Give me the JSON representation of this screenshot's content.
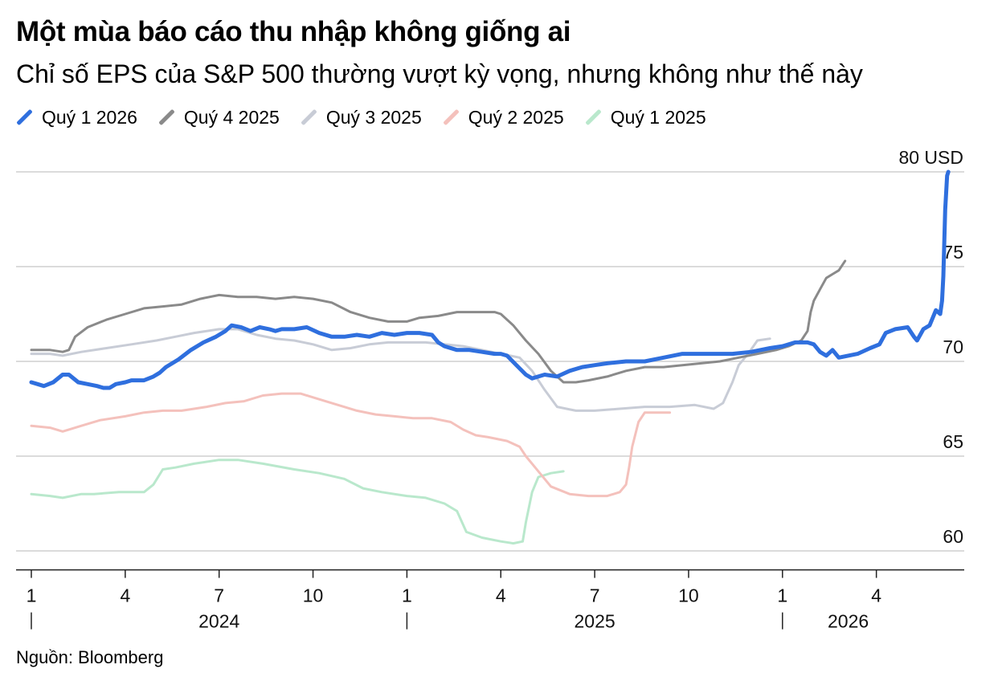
{
  "chart_data": {
    "type": "line",
    "title": "Một mùa báo cáo thu nhập không giống ai",
    "subtitle": "Chỉ số EPS của S&P 500 thường vượt kỳ vọng, nhưng không như thế này",
    "source": "Nguồn: Bloomberg",
    "y_unit_label": "80 USD",
    "ylim": [
      59,
      80
    ],
    "y_ticks": [
      60,
      65,
      70,
      75,
      80
    ],
    "y_tick_labels": [
      "60",
      "65",
      "70",
      "75",
      "80 USD"
    ],
    "xlim": [
      0,
      17
    ],
    "x_ticks": [
      {
        "x": 0,
        "label": "1"
      },
      {
        "x": 1.5,
        "label": "4"
      },
      {
        "x": 3,
        "label": "7"
      },
      {
        "x": 4.5,
        "label": "10"
      },
      {
        "x": 6,
        "label": "1"
      },
      {
        "x": 7.5,
        "label": "4"
      },
      {
        "x": 9,
        "label": "7"
      },
      {
        "x": 10.5,
        "label": "10"
      },
      {
        "x": 12,
        "label": "1"
      },
      {
        "x": 13.5,
        "label": "4"
      }
    ],
    "x_years": [
      {
        "x": 0,
        "center": 3,
        "label": "2024"
      },
      {
        "x": 6,
        "center": 9,
        "label": "2025"
      },
      {
        "x": 12,
        "center": 13.05,
        "label": "2026"
      }
    ],
    "grid": true,
    "legend_position": "top-left",
    "series": [
      {
        "name": "Quý 1 2025",
        "color": "#b9e8cc",
        "width": 3,
        "points": [
          [
            0,
            63
          ],
          [
            0.3,
            62.9
          ],
          [
            0.5,
            62.8
          ],
          [
            0.8,
            63
          ],
          [
            1,
            63
          ],
          [
            1.4,
            63.1
          ],
          [
            1.8,
            63.1
          ],
          [
            1.95,
            63.5
          ],
          [
            2.1,
            64.3
          ],
          [
            2.3,
            64.4
          ],
          [
            2.6,
            64.6
          ],
          [
            3,
            64.8
          ],
          [
            3.3,
            64.8
          ],
          [
            3.7,
            64.6
          ],
          [
            4.2,
            64.3
          ],
          [
            4.6,
            64.1
          ],
          [
            5,
            63.8
          ],
          [
            5.3,
            63.3
          ],
          [
            5.6,
            63.1
          ],
          [
            6,
            62.9
          ],
          [
            6.3,
            62.8
          ],
          [
            6.6,
            62.5
          ],
          [
            6.8,
            62.1
          ],
          [
            6.95,
            61
          ],
          [
            7.2,
            60.7
          ],
          [
            7.5,
            60.5
          ],
          [
            7.7,
            60.4
          ],
          [
            7.85,
            60.5
          ],
          [
            7.9,
            61.5
          ],
          [
            8.0,
            63.1
          ],
          [
            8.1,
            63.9
          ],
          [
            8.3,
            64.1
          ],
          [
            8.5,
            64.2
          ]
        ]
      },
      {
        "name": "Quý 2 2025",
        "color": "#f4c1bc",
        "width": 3,
        "points": [
          [
            0,
            66.6
          ],
          [
            0.3,
            66.5
          ],
          [
            0.5,
            66.3
          ],
          [
            0.8,
            66.6
          ],
          [
            1.1,
            66.9
          ],
          [
            1.5,
            67.1
          ],
          [
            1.8,
            67.3
          ],
          [
            2.1,
            67.4
          ],
          [
            2.4,
            67.4
          ],
          [
            2.8,
            67.6
          ],
          [
            3.1,
            67.8
          ],
          [
            3.4,
            67.9
          ],
          [
            3.7,
            68.2
          ],
          [
            4,
            68.3
          ],
          [
            4.3,
            68.3
          ],
          [
            4.6,
            68
          ],
          [
            4.9,
            67.7
          ],
          [
            5.2,
            67.4
          ],
          [
            5.5,
            67.2
          ],
          [
            5.8,
            67.1
          ],
          [
            6.1,
            67
          ],
          [
            6.4,
            67
          ],
          [
            6.7,
            66.8
          ],
          [
            6.9,
            66.4
          ],
          [
            7.1,
            66.1
          ],
          [
            7.3,
            66
          ],
          [
            7.6,
            65.8
          ],
          [
            7.8,
            65.5
          ],
          [
            7.9,
            65
          ],
          [
            8.1,
            64.2
          ],
          [
            8.3,
            63.4
          ],
          [
            8.6,
            63
          ],
          [
            8.9,
            62.9
          ],
          [
            9.2,
            62.9
          ],
          [
            9.4,
            63.1
          ],
          [
            9.5,
            63.5
          ],
          [
            9.55,
            64.4
          ],
          [
            9.6,
            65.5
          ],
          [
            9.7,
            66.8
          ],
          [
            9.8,
            67.3
          ],
          [
            10.0,
            67.3
          ],
          [
            10.2,
            67.3
          ]
        ]
      },
      {
        "name": "Quý 3 2025",
        "color": "#c8ccd6",
        "width": 3,
        "points": [
          [
            0,
            70.4
          ],
          [
            0.3,
            70.4
          ],
          [
            0.5,
            70.3
          ],
          [
            0.8,
            70.5
          ],
          [
            1.2,
            70.7
          ],
          [
            1.6,
            70.9
          ],
          [
            2,
            71.1
          ],
          [
            2.3,
            71.3
          ],
          [
            2.6,
            71.5
          ],
          [
            3,
            71.7
          ],
          [
            3.3,
            71.7
          ],
          [
            3.6,
            71.4
          ],
          [
            3.9,
            71.2
          ],
          [
            4.2,
            71.1
          ],
          [
            4.5,
            70.9
          ],
          [
            4.8,
            70.6
          ],
          [
            5.1,
            70.7
          ],
          [
            5.4,
            70.9
          ],
          [
            5.7,
            71
          ],
          [
            6,
            71
          ],
          [
            6.3,
            71
          ],
          [
            6.6,
            70.9
          ],
          [
            6.9,
            70.8
          ],
          [
            7.2,
            70.6
          ],
          [
            7.5,
            70.4
          ],
          [
            7.8,
            70.2
          ],
          [
            8.0,
            69.5
          ],
          [
            8.2,
            68.5
          ],
          [
            8.4,
            67.6
          ],
          [
            8.7,
            67.4
          ],
          [
            9,
            67.4
          ],
          [
            9.4,
            67.5
          ],
          [
            9.8,
            67.6
          ],
          [
            10.2,
            67.6
          ],
          [
            10.6,
            67.7
          ],
          [
            10.9,
            67.5
          ],
          [
            11.05,
            67.8
          ],
          [
            11.2,
            68.9
          ],
          [
            11.3,
            69.8
          ],
          [
            11.45,
            70.4
          ],
          [
            11.6,
            71.1
          ],
          [
            11.8,
            71.2
          ]
        ]
      },
      {
        "name": "Quý 4 2025",
        "color": "#8a8a8a",
        "width": 3,
        "points": [
          [
            0,
            70.6
          ],
          [
            0.3,
            70.6
          ],
          [
            0.5,
            70.5
          ],
          [
            0.6,
            70.6
          ],
          [
            0.7,
            71.3
          ],
          [
            0.9,
            71.8
          ],
          [
            1.2,
            72.2
          ],
          [
            1.5,
            72.5
          ],
          [
            1.8,
            72.8
          ],
          [
            2.1,
            72.9
          ],
          [
            2.4,
            73
          ],
          [
            2.7,
            73.3
          ],
          [
            3,
            73.5
          ],
          [
            3.3,
            73.4
          ],
          [
            3.6,
            73.4
          ],
          [
            3.9,
            73.3
          ],
          [
            4.2,
            73.4
          ],
          [
            4.5,
            73.3
          ],
          [
            4.8,
            73.1
          ],
          [
            5.1,
            72.6
          ],
          [
            5.4,
            72.3
          ],
          [
            5.7,
            72.1
          ],
          [
            6,
            72.1
          ],
          [
            6.2,
            72.3
          ],
          [
            6.5,
            72.4
          ],
          [
            6.8,
            72.6
          ],
          [
            7.1,
            72.6
          ],
          [
            7.4,
            72.6
          ],
          [
            7.5,
            72.5
          ],
          [
            7.7,
            71.9
          ],
          [
            7.9,
            71.1
          ],
          [
            8.1,
            70.4
          ],
          [
            8.3,
            69.5
          ],
          [
            8.5,
            68.9
          ],
          [
            8.7,
            68.9
          ],
          [
            8.9,
            69
          ],
          [
            9.2,
            69.2
          ],
          [
            9.5,
            69.5
          ],
          [
            9.8,
            69.7
          ],
          [
            10.1,
            69.7
          ],
          [
            10.4,
            69.8
          ],
          [
            10.7,
            69.9
          ],
          [
            11.0,
            70
          ],
          [
            11.3,
            70.2
          ],
          [
            11.6,
            70.4
          ],
          [
            11.9,
            70.6
          ],
          [
            12.1,
            70.8
          ],
          [
            12.3,
            71.1
          ],
          [
            12.4,
            71.6
          ],
          [
            12.45,
            72.6
          ],
          [
            12.5,
            73.2
          ],
          [
            12.6,
            73.8
          ],
          [
            12.7,
            74.4
          ],
          [
            12.8,
            74.6
          ],
          [
            12.9,
            74.8
          ],
          [
            13.0,
            75.3
          ]
        ]
      },
      {
        "name": "Quý 1 2026",
        "color": "#2f6fde",
        "width": 5,
        "points": [
          [
            0,
            68.9
          ],
          [
            0.1,
            68.8
          ],
          [
            0.2,
            68.7
          ],
          [
            0.35,
            68.9
          ],
          [
            0.5,
            69.3
          ],
          [
            0.6,
            69.3
          ],
          [
            0.75,
            68.9
          ],
          [
            0.9,
            68.8
          ],
          [
            1.05,
            68.7
          ],
          [
            1.15,
            68.6
          ],
          [
            1.25,
            68.6
          ],
          [
            1.35,
            68.8
          ],
          [
            1.5,
            68.9
          ],
          [
            1.6,
            69
          ],
          [
            1.7,
            69
          ],
          [
            1.8,
            69
          ],
          [
            1.95,
            69.2
          ],
          [
            2.05,
            69.4
          ],
          [
            2.15,
            69.7
          ],
          [
            2.35,
            70.1
          ],
          [
            2.55,
            70.6
          ],
          [
            2.75,
            71
          ],
          [
            2.95,
            71.3
          ],
          [
            3.1,
            71.6
          ],
          [
            3.2,
            71.9
          ],
          [
            3.35,
            71.8
          ],
          [
            3.5,
            71.6
          ],
          [
            3.65,
            71.8
          ],
          [
            3.8,
            71.7
          ],
          [
            3.9,
            71.6
          ],
          [
            4.0,
            71.7
          ],
          [
            4.2,
            71.7
          ],
          [
            4.4,
            71.8
          ],
          [
            4.6,
            71.5
          ],
          [
            4.8,
            71.3
          ],
          [
            5,
            71.3
          ],
          [
            5.2,
            71.4
          ],
          [
            5.4,
            71.3
          ],
          [
            5.6,
            71.5
          ],
          [
            5.8,
            71.4
          ],
          [
            6,
            71.5
          ],
          [
            6.2,
            71.5
          ],
          [
            6.4,
            71.4
          ],
          [
            6.5,
            71
          ],
          [
            6.6,
            70.8
          ],
          [
            6.8,
            70.6
          ],
          [
            7.0,
            70.6
          ],
          [
            7.2,
            70.5
          ],
          [
            7.4,
            70.4
          ],
          [
            7.5,
            70.4
          ],
          [
            7.6,
            70.3
          ],
          [
            7.75,
            69.8
          ],
          [
            7.9,
            69.3
          ],
          [
            8.0,
            69.1
          ],
          [
            8.2,
            69.3
          ],
          [
            8.4,
            69.2
          ],
          [
            8.6,
            69.5
          ],
          [
            8.8,
            69.7
          ],
          [
            9,
            69.8
          ],
          [
            9.2,
            69.9
          ],
          [
            9.5,
            70
          ],
          [
            9.8,
            70
          ],
          [
            10.1,
            70.2
          ],
          [
            10.4,
            70.4
          ],
          [
            10.6,
            70.4
          ],
          [
            10.8,
            70.4
          ],
          [
            11.0,
            70.4
          ],
          [
            11.2,
            70.4
          ],
          [
            11.5,
            70.5
          ],
          [
            11.8,
            70.7
          ],
          [
            12,
            70.8
          ],
          [
            12.2,
            71
          ],
          [
            12.4,
            71
          ],
          [
            12.5,
            70.9
          ],
          [
            12.6,
            70.5
          ],
          [
            12.7,
            70.3
          ],
          [
            12.8,
            70.6
          ],
          [
            12.9,
            70.2
          ],
          [
            13.05,
            70.3
          ],
          [
            13.2,
            70.4
          ],
          [
            13.4,
            70.7
          ],
          [
            13.55,
            70.9
          ],
          [
            13.65,
            71.5
          ],
          [
            13.8,
            71.7
          ],
          [
            14,
            71.8
          ],
          [
            14.1,
            71.3
          ],
          [
            14.15,
            71.1
          ],
          [
            14.25,
            71.7
          ],
          [
            14.35,
            71.9
          ],
          [
            14.45,
            72.7
          ],
          [
            14.52,
            72.5
          ],
          [
            14.55,
            73.2
          ],
          [
            14.57,
            74.5
          ],
          [
            14.6,
            78
          ],
          [
            14.63,
            79.8
          ],
          [
            14.65,
            80
          ]
        ]
      }
    ]
  }
}
